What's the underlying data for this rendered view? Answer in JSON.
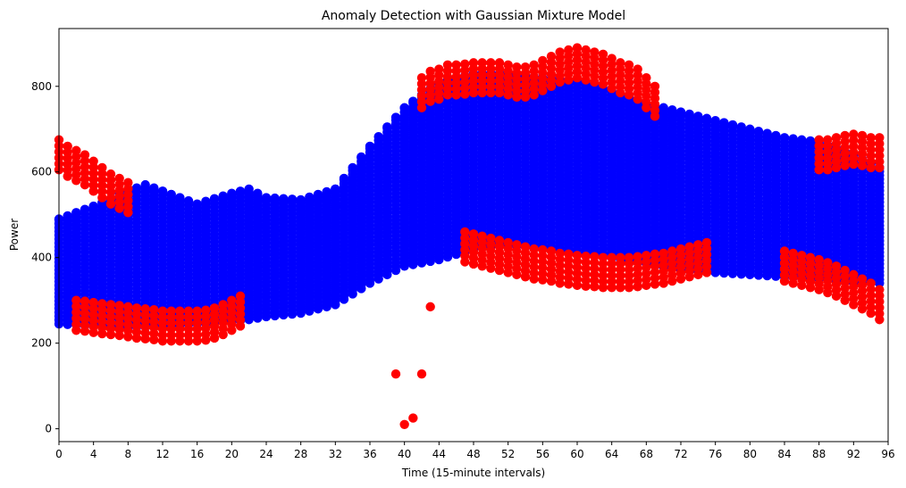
{
  "chart_data": {
    "type": "scatter",
    "title": "Anomaly Detection with Gaussian Mixture Model",
    "xlabel": "Time (15-minute intervals)",
    "ylabel": "Power",
    "xlim": [
      0,
      96
    ],
    "ylim": [
      -30,
      935
    ],
    "x_ticks": [
      0,
      4,
      8,
      12,
      16,
      20,
      24,
      28,
      32,
      36,
      40,
      44,
      48,
      52,
      56,
      60,
      64,
      68,
      72,
      76,
      80,
      84,
      88,
      92,
      96
    ],
    "y_ticks": [
      0,
      200,
      400,
      600,
      800
    ],
    "grid": false,
    "colors": {
      "normal": "#0000ff",
      "anomaly": "#ff0000"
    },
    "series": [
      {
        "color": "#0000ff",
        "role": "normal",
        "x_range": [
          0,
          95
        ],
        "envelope": {
          "x": [
            0,
            4,
            8,
            10,
            12,
            16,
            20,
            22,
            24,
            28,
            32,
            36,
            40,
            44,
            48,
            52,
            56,
            60,
            64,
            68,
            72,
            76,
            80,
            84,
            88,
            92,
            95
          ],
          "lower": [
            245,
            240,
            238,
            238,
            240,
            245,
            250,
            255,
            262,
            270,
            290,
            340,
            380,
            395,
            420,
            430,
            420,
            410,
            400,
            385,
            370,
            365,
            360,
            355,
            350,
            340,
            340
          ],
          "upper": [
            490,
            520,
            555,
            570,
            555,
            525,
            550,
            560,
            540,
            535,
            560,
            660,
            750,
            810,
            830,
            830,
            820,
            810,
            790,
            760,
            740,
            720,
            700,
            680,
            670,
            640,
            610
          ]
        }
      },
      {
        "color": "#ff0000",
        "role": "anomaly-upper-band",
        "x": [
          0,
          1,
          2,
          3,
          4,
          5,
          6,
          7,
          8,
          42,
          43,
          44,
          45,
          46,
          47,
          48,
          49,
          50,
          51,
          52,
          53,
          54,
          55,
          56,
          57,
          58,
          59,
          60,
          61,
          62,
          63,
          64,
          65,
          66,
          67,
          68,
          69,
          88,
          89,
          90,
          91,
          92,
          93,
          94,
          95
        ],
        "y": [
          675,
          660,
          650,
          640,
          625,
          610,
          595,
          585,
          575,
          820,
          835,
          840,
          850,
          850,
          852,
          855,
          855,
          855,
          855,
          850,
          845,
          845,
          850,
          860,
          870,
          880,
          885,
          890,
          885,
          880,
          875,
          865,
          855,
          850,
          840,
          820,
          800,
          675,
          675,
          680,
          685,
          688,
          685,
          680,
          680
        ]
      },
      {
        "color": "#ff0000",
        "role": "anomaly-lower-band",
        "x": [
          2,
          3,
          4,
          5,
          6,
          7,
          8,
          9,
          10,
          11,
          12,
          13,
          14,
          15,
          16,
          17,
          18,
          19,
          20,
          21,
          47,
          48,
          49,
          50,
          51,
          52,
          53,
          54,
          55,
          56,
          57,
          58,
          59,
          60,
          61,
          62,
          63,
          64,
          65,
          66,
          67,
          68,
          69,
          70,
          71,
          72,
          73,
          74,
          75,
          84,
          85,
          86,
          87,
          88,
          89,
          90,
          91,
          92,
          93,
          94,
          95
        ],
        "y": [
          230,
          228,
          225,
          222,
          220,
          218,
          215,
          212,
          210,
          208,
          205,
          205,
          205,
          205,
          205,
          207,
          212,
          220,
          230,
          240,
          390,
          385,
          380,
          375,
          370,
          365,
          360,
          355,
          350,
          348,
          345,
          340,
          338,
          335,
          333,
          332,
          330,
          330,
          330,
          330,
          332,
          335,
          338,
          340,
          345,
          350,
          355,
          360,
          365,
          345,
          340,
          335,
          330,
          325,
          318,
          310,
          300,
          290,
          280,
          270,
          255
        ]
      },
      {
        "color": "#ff0000",
        "role": "anomaly-outliers",
        "x": [
          39,
          40,
          41,
          42,
          43
        ],
        "y": [
          128,
          10,
          25,
          128,
          285
        ]
      }
    ]
  }
}
